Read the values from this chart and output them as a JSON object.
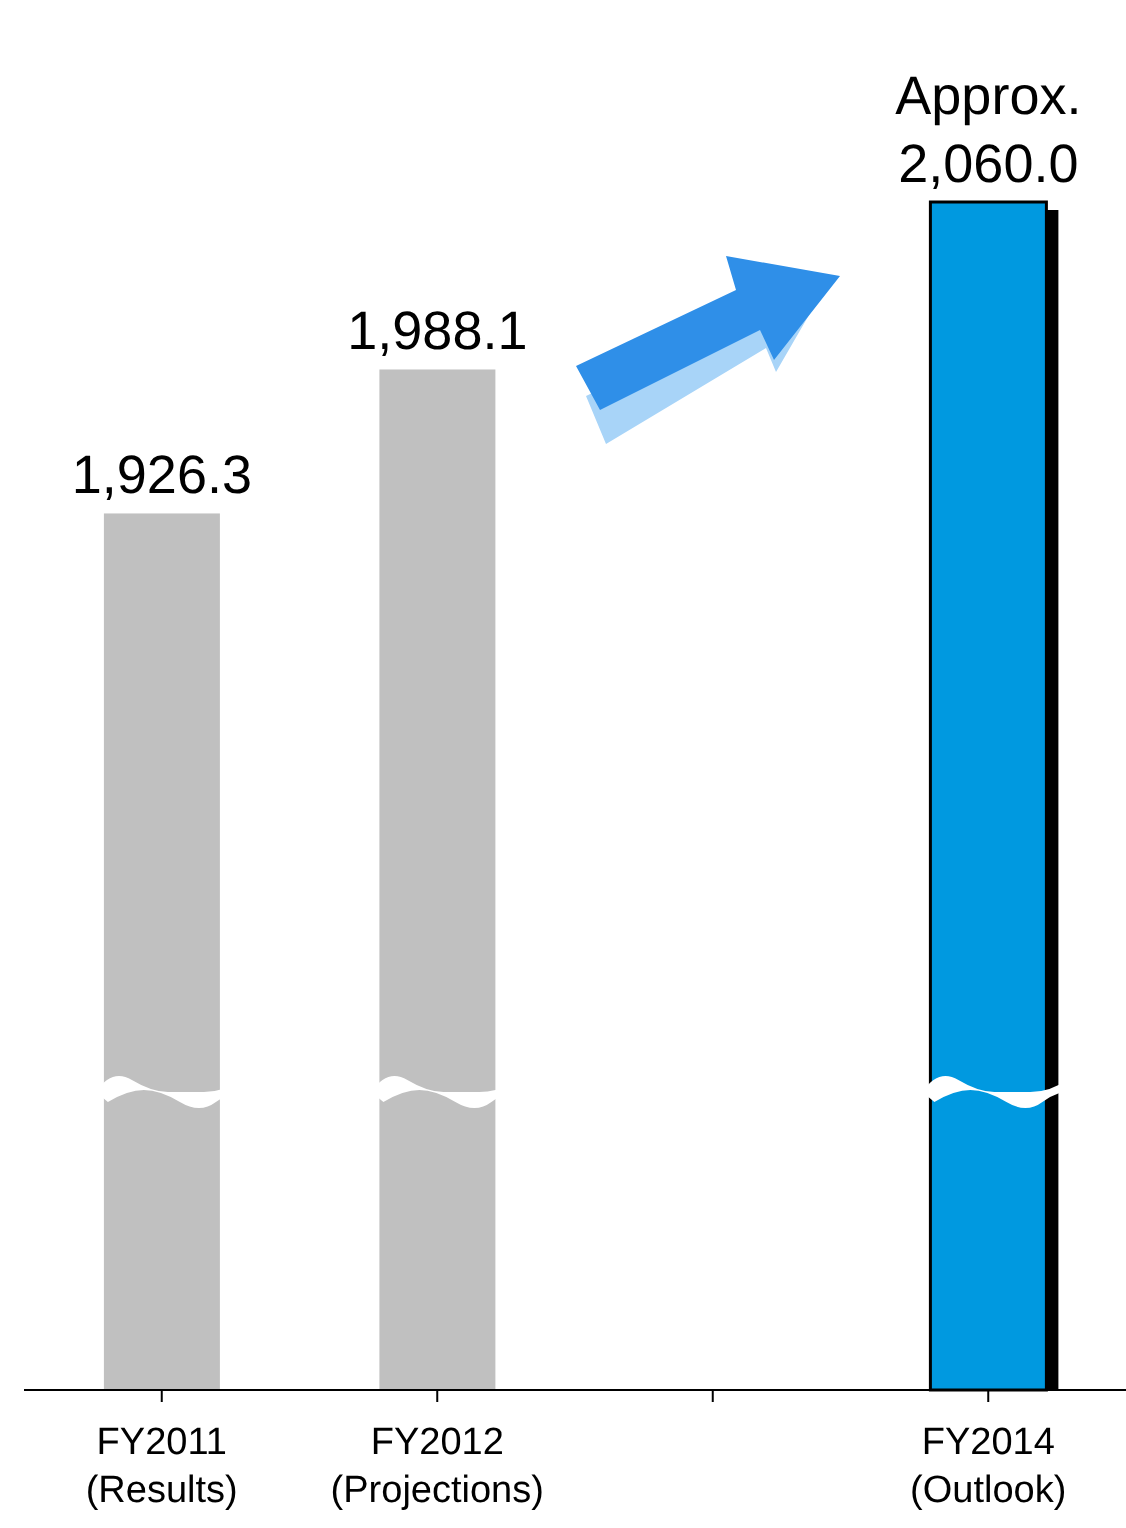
{
  "chart_data": {
    "type": "bar",
    "categories": [
      "FY2011\n(Results)",
      "FY2012\n(Projections)",
      null,
      "FY2014\n(Outlook)"
    ],
    "values": [
      1926.3,
      1988.1,
      null,
      2060.0
    ],
    "colors": [
      "#c0c0c0",
      "#c0c0c0",
      "#c0c0c0",
      "#0099e0"
    ],
    "value_labels": [
      "1,926.3",
      "1,988.1",
      null,
      "Approx.\n2,060.0"
    ],
    "ylim": [
      1550,
      2060
    ],
    "grid": false,
    "legend": false
  }
}
